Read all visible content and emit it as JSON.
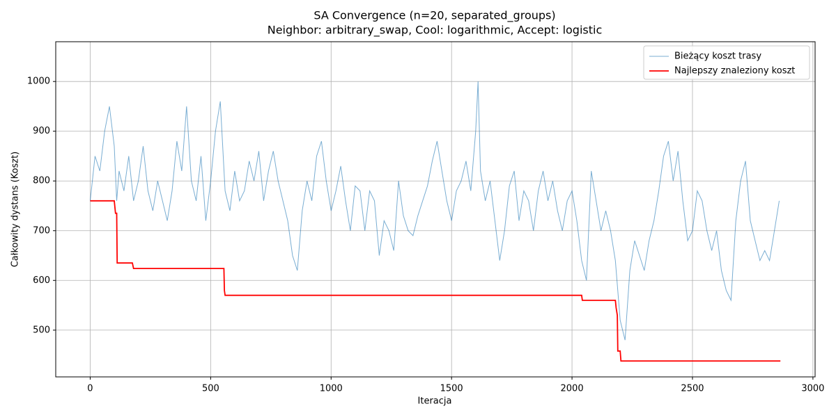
{
  "chart_data": {
    "type": "line",
    "title": "SA Convergence (n=20, separated_groups)",
    "subtitle": "Neighbor: arbitrary_swap, Cool: logarithmic, Accept: logistic",
    "xlabel": "Iteracja",
    "ylabel": "Całkowity dystans (Koszt)",
    "xlim": [
      -143,
      3009
    ],
    "ylim": [
      406,
      1080
    ],
    "xticks": [
      0,
      500,
      1000,
      1500,
      2000,
      2500,
      3000
    ],
    "yticks": [
      500,
      600,
      700,
      800,
      900,
      1000
    ],
    "grid": true,
    "legend": "upper right",
    "series": [
      {
        "name": "Bieżący koszt trasy",
        "color": "#1f77b4",
        "x": [
          0,
          20,
          40,
          60,
          80,
          100,
          110,
          120,
          140,
          160,
          180,
          200,
          220,
          240,
          260,
          280,
          300,
          320,
          340,
          360,
          380,
          400,
          420,
          440,
          460,
          480,
          500,
          520,
          540,
          560,
          580,
          600,
          620,
          640,
          660,
          680,
          700,
          720,
          740,
          760,
          780,
          800,
          820,
          840,
          860,
          880,
          900,
          920,
          940,
          960,
          980,
          1000,
          1020,
          1040,
          1060,
          1080,
          1100,
          1120,
          1140,
          1160,
          1180,
          1200,
          1220,
          1240,
          1260,
          1280,
          1300,
          1320,
          1340,
          1360,
          1380,
          1400,
          1420,
          1440,
          1460,
          1480,
          1500,
          1520,
          1540,
          1560,
          1580,
          1600,
          1610,
          1620,
          1640,
          1660,
          1680,
          1700,
          1720,
          1740,
          1760,
          1780,
          1800,
          1820,
          1840,
          1860,
          1880,
          1900,
          1920,
          1940,
          1960,
          1980,
          2000,
          2020,
          2040,
          2060,
          2080,
          2100,
          2120,
          2140,
          2160,
          2180,
          2200,
          2220,
          2240,
          2260,
          2280,
          2300,
          2320,
          2340,
          2360,
          2380,
          2400,
          2420,
          2440,
          2460,
          2480,
          2500,
          2520,
          2540,
          2560,
          2580,
          2600,
          2620,
          2640,
          2660,
          2680,
          2700,
          2720,
          2740,
          2760,
          2780,
          2800,
          2820,
          2840,
          2860
        ],
        "values": [
          760,
          850,
          820,
          900,
          950,
          870,
          760,
          820,
          780,
          850,
          760,
          800,
          870,
          780,
          740,
          800,
          760,
          720,
          780,
          880,
          820,
          950,
          800,
          760,
          850,
          720,
          800,
          900,
          960,
          780,
          740,
          820,
          760,
          780,
          840,
          800,
          860,
          760,
          820,
          860,
          800,
          760,
          720,
          650,
          620,
          740,
          800,
          760,
          850,
          880,
          800,
          740,
          780,
          830,
          760,
          700,
          790,
          780,
          700,
          780,
          760,
          650,
          720,
          700,
          660,
          800,
          730,
          700,
          690,
          730,
          760,
          790,
          840,
          880,
          820,
          760,
          720,
          780,
          800,
          840,
          780,
          900,
          1000,
          820,
          760,
          800,
          720,
          640,
          700,
          790,
          820,
          720,
          780,
          760,
          700,
          780,
          820,
          760,
          800,
          740,
          700,
          760,
          780,
          720,
          640,
          600,
          820,
          760,
          700,
          740,
          700,
          640,
          520,
          480,
          620,
          680,
          650,
          620,
          680,
          720,
          780,
          850,
          880,
          800,
          860,
          760,
          680,
          700,
          780,
          760,
          700,
          660,
          700,
          620,
          580,
          560,
          720,
          800,
          840,
          720,
          680,
          640,
          660,
          640,
          700,
          760
        ]
      },
      {
        "name": "Najlepszy znaleziony koszt",
        "color": "#ff0000",
        "x": [
          0,
          100,
          105,
          110,
          112,
          175,
          180,
          555,
          557,
          560,
          2040,
          2043,
          2180,
          2183,
          2188,
          2190,
          2200,
          2203,
          2865
        ],
        "values": [
          760,
          760,
          735,
          735,
          635,
          635,
          624,
          624,
          580,
          570,
          570,
          560,
          560,
          545,
          530,
          458,
          458,
          438,
          438
        ]
      }
    ]
  }
}
